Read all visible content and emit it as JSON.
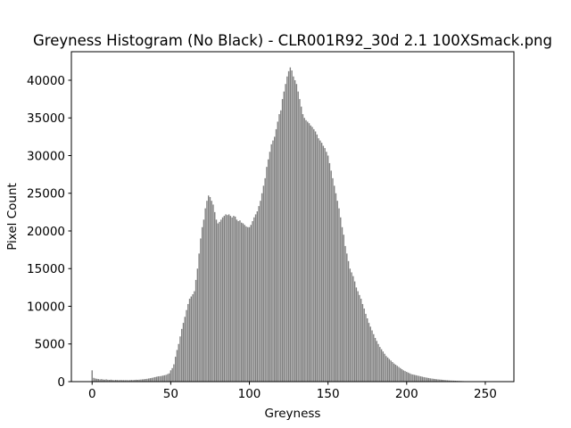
{
  "chart_data": {
    "type": "bar",
    "title": "Greyness Histogram (No Black) - CLR001R92_30d 2.1 100XSmack.png",
    "xlabel": "Greyness",
    "ylabel": "Pixel Count",
    "color": "#808080",
    "x": [
      0,
      1,
      2,
      3,
      4,
      5,
      6,
      7,
      8,
      9,
      10,
      11,
      12,
      13,
      14,
      15,
      16,
      17,
      18,
      19,
      20,
      21,
      22,
      23,
      24,
      25,
      26,
      27,
      28,
      29,
      30,
      31,
      32,
      33,
      34,
      35,
      36,
      37,
      38,
      39,
      40,
      41,
      42,
      43,
      44,
      45,
      46,
      47,
      48,
      49,
      50,
      51,
      52,
      53,
      54,
      55,
      56,
      57,
      58,
      59,
      60,
      61,
      62,
      63,
      64,
      65,
      66,
      67,
      68,
      69,
      70,
      71,
      72,
      73,
      74,
      75,
      76,
      77,
      78,
      79,
      80,
      81,
      82,
      83,
      84,
      85,
      86,
      87,
      88,
      89,
      90,
      91,
      92,
      93,
      94,
      95,
      96,
      97,
      98,
      99,
      100,
      101,
      102,
      103,
      104,
      105,
      106,
      107,
      108,
      109,
      110,
      111,
      112,
      113,
      114,
      115,
      116,
      117,
      118,
      119,
      120,
      121,
      122,
      123,
      124,
      125,
      126,
      127,
      128,
      129,
      130,
      131,
      132,
      133,
      134,
      135,
      136,
      137,
      138,
      139,
      140,
      141,
      142,
      143,
      144,
      145,
      146,
      147,
      148,
      149,
      150,
      151,
      152,
      153,
      154,
      155,
      156,
      157,
      158,
      159,
      160,
      161,
      162,
      163,
      164,
      165,
      166,
      167,
      168,
      169,
      170,
      171,
      172,
      173,
      174,
      175,
      176,
      177,
      178,
      179,
      180,
      181,
      182,
      183,
      184,
      185,
      186,
      187,
      188,
      189,
      190,
      191,
      192,
      193,
      194,
      195,
      196,
      197,
      198,
      199,
      200,
      201,
      202,
      203,
      204,
      205,
      206,
      207,
      208,
      209,
      210,
      211,
      212,
      213,
      214,
      215,
      216,
      217,
      218,
      219,
      220,
      221,
      222,
      223,
      224,
      225,
      226,
      227,
      228,
      229,
      230,
      231,
      232,
      233,
      234,
      235,
      236,
      237,
      238,
      239,
      240,
      241,
      242,
      243,
      244,
      245,
      246,
      247,
      248,
      249,
      250,
      251,
      252,
      253,
      254,
      255
    ],
    "values": [
      1500,
      500,
      420,
      380,
      350,
      300,
      330,
      280,
      260,
      300,
      250,
      230,
      260,
      220,
      200,
      230,
      210,
      190,
      220,
      200,
      200,
      190,
      210,
      180,
      200,
      220,
      210,
      230,
      250,
      240,
      260,
      280,
      300,
      320,
      350,
      380,
      420,
      460,
      500,
      550,
      600,
      650,
      700,
      720,
      750,
      800,
      850,
      900,
      1000,
      1100,
      1500,
      1800,
      2300,
      3300,
      4200,
      5000,
      6000,
      7000,
      7800,
      8600,
      9500,
      10300,
      11000,
      11300,
      11600,
      12000,
      13500,
      15000,
      17000,
      19000,
      20500,
      21500,
      23000,
      24000,
      24700,
      24500,
      24000,
      23500,
      22500,
      21500,
      21000,
      21200,
      21500,
      21800,
      22000,
      22200,
      22100,
      22200,
      22000,
      21800,
      22000,
      21900,
      21500,
      21300,
      21400,
      21100,
      21000,
      20800,
      20600,
      20500,
      20500,
      20800,
      21300,
      21800,
      22200,
      22600,
      23300,
      24000,
      25000,
      26000,
      27000,
      28500,
      29500,
      30500,
      31500,
      32000,
      32500,
      33500,
      34500,
      35500,
      36000,
      37500,
      38500,
      39500,
      40500,
      41200,
      41700,
      41300,
      40500,
      40000,
      39500,
      38500,
      37500,
      36500,
      35500,
      35000,
      34700,
      34500,
      34300,
      34000,
      33800,
      33500,
      33200,
      32800,
      32300,
      32000,
      31700,
      31300,
      31000,
      30500,
      30000,
      29000,
      28000,
      27000,
      26000,
      25000,
      24000,
      23000,
      21800,
      20500,
      19500,
      18000,
      17000,
      16000,
      15000,
      14500,
      14000,
      13300,
      12500,
      12000,
      11500,
      11000,
      10300,
      9700,
      9000,
      8400,
      7800,
      7300,
      6800,
      6300,
      5800,
      5400,
      5000,
      4600,
      4300,
      4000,
      3700,
      3400,
      3200,
      3000,
      2800,
      2600,
      2400,
      2250,
      2100,
      1950,
      1800,
      1650,
      1500,
      1400,
      1300,
      1200,
      1100,
      1000,
      950,
      900,
      850,
      800,
      750,
      700,
      650,
      600,
      560,
      520,
      480,
      440,
      410,
      380,
      350,
      320,
      300,
      280,
      260,
      240,
      220,
      200,
      180,
      160,
      150,
      140,
      130,
      120,
      110,
      100,
      90,
      80,
      70,
      60,
      55,
      50,
      45,
      40,
      35,
      30,
      28,
      25,
      22,
      20,
      18,
      16,
      14,
      12,
      10,
      8,
      6,
      5
    ],
    "xlim": [
      -13.19,
      268.19
    ],
    "xticks": [
      0,
      50,
      100,
      150,
      200,
      250
    ],
    "ylim": [
      0,
      43785
    ],
    "yticks": [
      0,
      5000,
      10000,
      15000,
      20000,
      25000,
      30000,
      35000,
      40000
    ]
  }
}
